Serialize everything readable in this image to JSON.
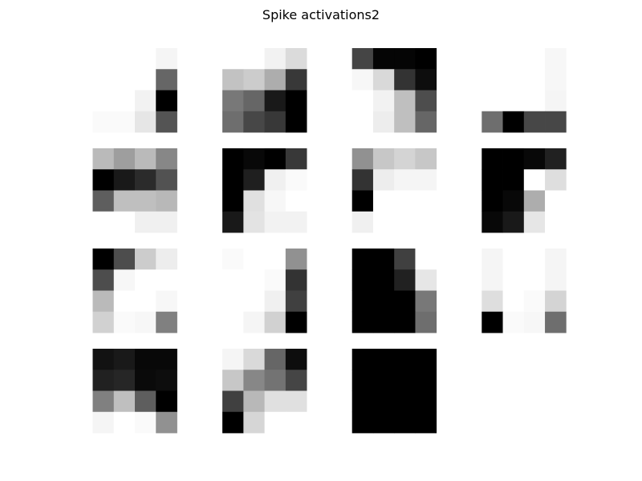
{
  "chart_data": {
    "type": "heatmap",
    "title": "Spike activations2",
    "colormap": "gray_r",
    "value_range": [
      0,
      1
    ],
    "panel_layout": {
      "rows": 4,
      "cols": 4
    },
    "panels": [
      {
        "values": [
          [
            0.0,
            0.0,
            0.0,
            0.04
          ],
          [
            0.0,
            0.0,
            0.0,
            0.6
          ],
          [
            0.0,
            0.0,
            0.05,
            1.0
          ],
          [
            0.02,
            0.02,
            0.1,
            0.67
          ]
        ]
      },
      {
        "values": [
          [
            0.0,
            0.0,
            0.05,
            0.14
          ],
          [
            0.24,
            0.2,
            0.32,
            0.78
          ],
          [
            0.53,
            0.6,
            0.9,
            1.0
          ],
          [
            0.57,
            0.72,
            0.78,
            1.0
          ]
        ]
      },
      {
        "values": [
          [
            0.73,
            0.98,
            0.98,
            1.0
          ],
          [
            0.03,
            0.15,
            0.8,
            0.95
          ],
          [
            0.0,
            0.05,
            0.25,
            0.7
          ],
          [
            0.0,
            0.07,
            0.25,
            0.6
          ]
        ]
      },
      {
        "values": [
          [
            0.0,
            0.0,
            0.0,
            0.03
          ],
          [
            0.0,
            0.0,
            0.0,
            0.03
          ],
          [
            0.0,
            0.0,
            0.0,
            0.04
          ],
          [
            0.57,
            1.0,
            0.72,
            0.72
          ]
        ]
      },
      {
        "values": [
          [
            0.27,
            0.38,
            0.27,
            0.47
          ],
          [
            1.0,
            0.9,
            0.83,
            0.68
          ],
          [
            0.63,
            0.25,
            0.25,
            0.28
          ],
          [
            0.0,
            0.0,
            0.06,
            0.06
          ]
        ]
      },
      {
        "values": [
          [
            1.0,
            0.97,
            1.0,
            0.78
          ],
          [
            1.0,
            0.88,
            0.06,
            0.02
          ],
          [
            1.0,
            0.12,
            0.03,
            0.0
          ],
          [
            0.9,
            0.11,
            0.05,
            0.05
          ]
        ]
      },
      {
        "values": [
          [
            0.43,
            0.22,
            0.17,
            0.22
          ],
          [
            0.8,
            0.07,
            0.04,
            0.04
          ],
          [
            1.0,
            0.0,
            0.0,
            0.0
          ],
          [
            0.06,
            0.0,
            0.0,
            0.0
          ]
        ]
      },
      {
        "values": [
          [
            1.0,
            1.0,
            0.97,
            0.87
          ],
          [
            1.0,
            1.0,
            0.0,
            0.13
          ],
          [
            1.0,
            0.97,
            0.32,
            0.0
          ],
          [
            0.97,
            0.9,
            0.1,
            0.0
          ]
        ]
      },
      {
        "values": [
          [
            1.0,
            0.7,
            0.2,
            0.07
          ],
          [
            0.7,
            0.03,
            0.0,
            0.0
          ],
          [
            0.27,
            0.0,
            0.0,
            0.03
          ],
          [
            0.18,
            0.02,
            0.03,
            0.5
          ]
        ]
      },
      {
        "values": [
          [
            0.02,
            0.0,
            0.0,
            0.43
          ],
          [
            0.0,
            0.0,
            0.02,
            0.8
          ],
          [
            0.0,
            0.0,
            0.06,
            0.75
          ],
          [
            0.0,
            0.04,
            0.18,
            1.0
          ]
        ]
      },
      {
        "values": [
          [
            1.0,
            1.0,
            0.75,
            0.0
          ],
          [
            1.0,
            1.0,
            0.87,
            0.1
          ],
          [
            1.0,
            1.0,
            1.0,
            0.53
          ],
          [
            1.0,
            1.0,
            1.0,
            0.57
          ]
        ]
      },
      {
        "values": [
          [
            0.04,
            0.0,
            0.0,
            0.04
          ],
          [
            0.04,
            0.0,
            0.0,
            0.04
          ],
          [
            0.13,
            0.0,
            0.02,
            0.17
          ],
          [
            1.0,
            0.02,
            0.03,
            0.57
          ]
        ]
      },
      {
        "values": [
          [
            0.93,
            0.9,
            0.97,
            0.97
          ],
          [
            0.87,
            0.85,
            0.96,
            0.95
          ],
          [
            0.5,
            0.25,
            0.63,
            1.0
          ],
          [
            0.04,
            0.0,
            0.02,
            0.43
          ]
        ]
      },
      {
        "values": [
          [
            0.04,
            0.15,
            0.6,
            0.95
          ],
          [
            0.22,
            0.47,
            0.55,
            0.73
          ],
          [
            0.75,
            0.28,
            0.12,
            0.12
          ],
          [
            1.0,
            0.16,
            0.0,
            0.0
          ]
        ]
      },
      {
        "values": [
          [
            1.0,
            1.0,
            1.0,
            1.0
          ],
          [
            1.0,
            1.0,
            1.0,
            1.0
          ],
          [
            1.0,
            1.0,
            1.0,
            1.0
          ],
          [
            1.0,
            1.0,
            1.0,
            1.0
          ]
        ]
      }
    ]
  }
}
